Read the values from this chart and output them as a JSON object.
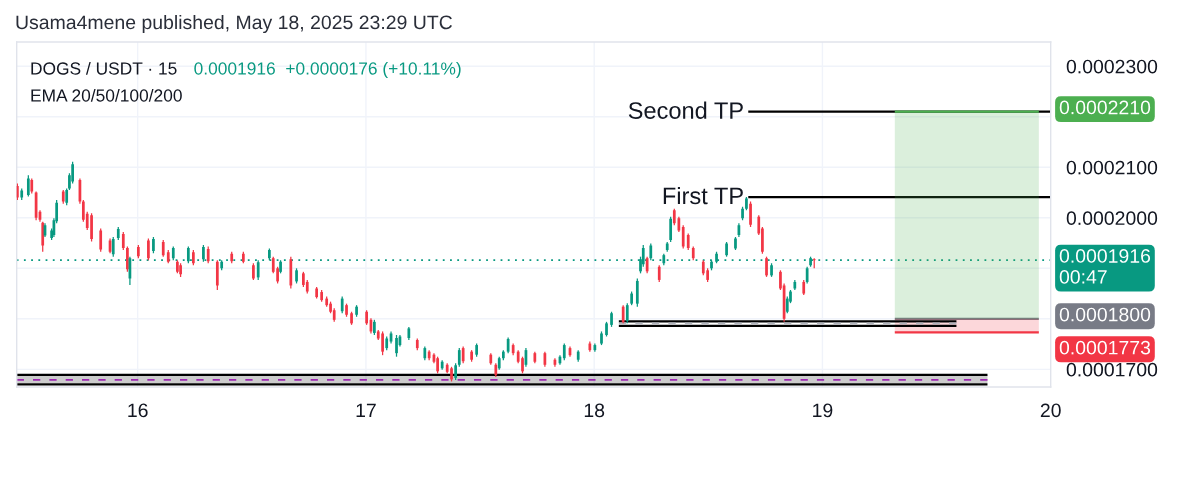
{
  "chart_data": {
    "type": "candlestick",
    "title": "Usama4mene published, May 18, 2025 23:29 UTC",
    "subtitle": "DOGS / USDT · 15",
    "annotations": [
      "0.0001916  +0.0000176 (+10.11%)",
      "EMA 20/50/100/200"
    ],
    "x": [
      15.473,
      15.492,
      15.521,
      15.536,
      15.555,
      15.572,
      15.584,
      15.594,
      15.623,
      15.633,
      15.645,
      15.674,
      15.689,
      15.701,
      15.715,
      15.747,
      15.762,
      15.779,
      15.798,
      15.838,
      15.879,
      15.893,
      15.915,
      15.937,
      15.955,
      15.966,
      16.003,
      16.047,
      16.069,
      16.112,
      16.134,
      16.156,
      16.174,
      16.188,
      16.222,
      16.244,
      16.288,
      16.309,
      16.349,
      16.368,
      16.412,
      16.463,
      16.507,
      16.528,
      16.577,
      16.594,
      16.613,
      16.626,
      16.671,
      16.696,
      16.726,
      16.743,
      16.784,
      16.806,
      16.828,
      16.845,
      16.861,
      16.896,
      16.915,
      16.937,
      16.959,
      17.003,
      17.022,
      17.037,
      17.054,
      17.073,
      17.091,
      17.11,
      17.134,
      17.149,
      17.188,
      17.225,
      17.258,
      17.277,
      17.298,
      17.314,
      17.334,
      17.356,
      17.375,
      17.393,
      17.409,
      17.426,
      17.463,
      17.485,
      17.547,
      17.569,
      17.584,
      17.602,
      17.623,
      17.645,
      17.667,
      17.686,
      17.701,
      17.74,
      17.784,
      17.828,
      17.85,
      17.869,
      17.894,
      17.93,
      17.981,
      18.003,
      18.032,
      18.054,
      18.076,
      18.127,
      18.145,
      18.164,
      18.189,
      18.203,
      18.215,
      18.232,
      18.248,
      18.285,
      18.305,
      18.32,
      18.335,
      18.351,
      18.371,
      18.39,
      18.412,
      18.434,
      18.478,
      18.497,
      18.514,
      18.536,
      18.58,
      18.619,
      18.634,
      18.65,
      18.667,
      18.685,
      18.721,
      18.737,
      18.755,
      18.777,
      18.816,
      18.832,
      18.846,
      18.86,
      18.879,
      18.918,
      18.933,
      18.948,
      18.964
    ],
    "ohlc": [
      [
        0.0002063,
        0.0002068,
        0.0002035,
        0.000204
      ],
      [
        0.000204,
        0.0002058,
        0.0002035,
        0.0002054
      ],
      [
        0.0002045,
        0.0002084,
        0.0002042,
        0.0002078
      ],
      [
        0.0002075,
        0.0002078,
        0.0002048,
        0.0002052
      ],
      [
        0.000205,
        0.0002052,
        0.0001995,
        0.0002
      ],
      [
        0.0002012,
        0.0002015,
        0.0001992,
        0.0001996
      ],
      [
        0.000199,
        0.0001992,
        0.0001933,
        0.0001945
      ],
      [
        0.0001965,
        0.0001989,
        0.0001962,
        0.0001985
      ],
      [
        0.000196,
        0.0001979,
        0.0001956,
        0.0001975
      ],
      [
        0.0001966,
        0.0001999,
        0.0001962,
        0.0001995
      ],
      [
        0.0001993,
        0.0002035,
        0.0001989,
        0.000203
      ],
      [
        0.0002052,
        0.0002055,
        0.0002028,
        0.0002032
      ],
      [
        0.000203,
        0.0002058,
        0.0002025,
        0.0002055
      ],
      [
        0.0002058,
        0.0002088,
        0.0002055,
        0.0002084
      ],
      [
        0.0002072,
        0.0002111,
        0.0002068,
        0.0002106
      ],
      [
        0.0002075,
        0.0002078,
        0.0002028,
        0.0002032
      ],
      [
        0.0002032,
        0.0002035,
        0.0001992,
        0.0001996
      ],
      [
        0.0002008,
        0.0002012,
        0.0001976,
        0.000198
      ],
      [
        0.0002005,
        0.0002009,
        0.0001953,
        0.0001958
      ],
      [
        0.0001975,
        0.0001979,
        0.0001933,
        0.0001937
      ],
      [
        0.0001955,
        0.0001959,
        0.000193,
        0.0001933
      ],
      [
        0.0001928,
        0.0001962,
        0.0001923,
        0.0001958
      ],
      [
        0.000196,
        0.0001982,
        0.0001956,
        0.0001978
      ],
      [
        0.0001968,
        0.0001972,
        0.0001936,
        0.000194
      ],
      [
        0.000194,
        0.0001943,
        0.0001893,
        0.0001898
      ],
      [
        0.000188,
        0.0001923,
        0.0001867,
        0.000192
      ],
      [
        0.0001942,
        0.0001946,
        0.000192,
        0.0001924
      ],
      [
        0.0001955,
        0.0001959,
        0.0001916,
        0.000192
      ],
      [
        0.0001934,
        0.0001962,
        0.000193,
        0.0001958
      ],
      [
        0.0001952,
        0.0001956,
        0.0001923,
        0.0001926
      ],
      [
        0.0001932,
        0.0001936,
        0.000191,
        0.0001913
      ],
      [
        0.000192,
        0.0001943,
        0.0001916,
        0.000194
      ],
      [
        0.0001913,
        0.0001916,
        0.000189,
        0.0001893
      ],
      [
        0.0001906,
        0.000191,
        0.0001883,
        0.0001888
      ],
      [
        0.0001914,
        0.0001943,
        0.000191,
        0.000194
      ],
      [
        0.0001932,
        0.0001936,
        0.0001906,
        0.000191
      ],
      [
        0.0001918,
        0.0001946,
        0.0001913,
        0.0001942
      ],
      [
        0.0001938,
        0.0001943,
        0.000191,
        0.0001914
      ],
      [
        0.0001913,
        0.0001916,
        0.0001857,
        0.0001866
      ],
      [
        0.00019,
        0.0001916,
        0.0001896,
        0.0001913
      ],
      [
        0.0001929,
        0.0001933,
        0.000191,
        0.0001914
      ],
      [
        0.0001929,
        0.0001933,
        0.000191,
        0.0001913
      ],
      [
        0.0001906,
        0.000191,
        0.0001877,
        0.000188
      ],
      [
        0.0001882,
        0.0001916,
        0.0001877,
        0.0001912
      ],
      [
        0.000192,
        0.0001939,
        0.0001916,
        0.0001936
      ],
      [
        0.000192,
        0.0001923,
        0.000189,
        0.0001893
      ],
      [
        0.00019,
        0.0001903,
        0.000187,
        0.0001874
      ],
      [
        0.0001893,
        0.0001916,
        0.000189,
        0.0001913
      ],
      [
        0.0001918,
        0.0001923,
        0.000186,
        0.0001866
      ],
      [
        0.0001874,
        0.00019,
        0.000187,
        0.0001896
      ],
      [
        0.000189,
        0.0001893,
        0.0001863,
        0.0001867
      ],
      [
        0.0001873,
        0.0001877,
        0.000185,
        0.0001854
      ],
      [
        0.000186,
        0.0001863,
        0.000184,
        0.0001843
      ],
      [
        0.0001853,
        0.0001857,
        0.0001834,
        0.0001837
      ],
      [
        0.000184,
        0.0001844,
        0.0001824,
        0.0001827
      ],
      [
        0.000183,
        0.0001834,
        0.0001811,
        0.0001814
      ],
      [
        0.0001817,
        0.0001821,
        0.0001794,
        0.0001798
      ],
      [
        0.0001815,
        0.0001844,
        0.0001811,
        0.000184
      ],
      [
        0.0001827,
        0.000183,
        0.0001804,
        0.0001808
      ],
      [
        0.0001811,
        0.0001814,
        0.0001788,
        0.0001791
      ],
      [
        0.0001808,
        0.0001827,
        0.0001804,
        0.0001824
      ],
      [
        0.0001814,
        0.0001817,
        0.0001788,
        0.0001791
      ],
      [
        0.0001798,
        0.0001801,
        0.0001771,
        0.0001775
      ],
      [
        0.0001772,
        0.0001798,
        0.0001768,
        0.0001794
      ],
      [
        0.0001775,
        0.0001778,
        0.0001758,
        0.0001761
      ],
      [
        0.0001771,
        0.0001775,
        0.0001728,
        0.0001735
      ],
      [
        0.0001742,
        0.0001765,
        0.0001738,
        0.0001761
      ],
      [
        0.0001755,
        0.0001775,
        0.0001751,
        0.0001771
      ],
      [
        0.0001732,
        0.0001768,
        0.0001725,
        0.0001762
      ],
      [
        0.0001748,
        0.0001768,
        0.0001745,
        0.0001765
      ],
      [
        0.0001762,
        0.0001784,
        0.0001758,
        0.0001781
      ],
      [
        0.0001758,
        0.0001761,
        0.0001738,
        0.0001742
      ],
      [
        0.0001722,
        0.0001745,
        0.0001718,
        0.0001742
      ],
      [
        0.0001735,
        0.0001738,
        0.0001718,
        0.0001722
      ],
      [
        0.0001729,
        0.0001732,
        0.0001712,
        0.0001715
      ],
      [
        0.0001722,
        0.0001725,
        0.0001692,
        0.0001696
      ],
      [
        0.0001702,
        0.0001718,
        0.0001699,
        0.0001715
      ],
      [
        0.0001709,
        0.0001712,
        0.0001692,
        0.0001695
      ],
      [
        0.0001702,
        0.0001705,
        0.0001676,
        0.000168
      ],
      [
        0.0001683,
        0.0001712,
        0.0001679,
        0.0001708
      ],
      [
        0.0001709,
        0.0001742,
        0.0001705,
        0.0001738
      ],
      [
        0.0001742,
        0.0001745,
        0.0001712,
        0.0001716
      ],
      [
        0.0001735,
        0.0001738,
        0.0001715,
        0.0001719
      ],
      [
        0.0001729,
        0.0001751,
        0.0001725,
        0.0001748
      ],
      [
        0.0001729,
        0.0001732,
        0.0001709,
        0.0001712
      ],
      [
        0.0001709,
        0.0001712,
        0.0001685,
        0.0001689
      ],
      [
        0.0001702,
        0.0001725,
        0.0001699,
        0.0001722
      ],
      [
        0.0001722,
        0.0001738,
        0.0001718,
        0.0001735
      ],
      [
        0.0001735,
        0.0001763,
        0.0001732,
        0.000176
      ],
      [
        0.0001748,
        0.0001751,
        0.0001728,
        0.0001732
      ],
      [
        0.0001735,
        0.0001738,
        0.0001712,
        0.0001715
      ],
      [
        0.0001722,
        0.0001725,
        0.0001692,
        0.0001696
      ],
      [
        0.0001709,
        0.0001742,
        0.0001705,
        0.0001738
      ],
      [
        0.0001732,
        0.0001735,
        0.0001712,
        0.0001715
      ],
      [
        0.0001732,
        0.0001735,
        0.0001705,
        0.0001709
      ],
      [
        0.0001719,
        0.0001722,
        0.0001705,
        0.0001709
      ],
      [
        0.0001712,
        0.0001728,
        0.0001709,
        0.0001725
      ],
      [
        0.0001722,
        0.0001751,
        0.0001718,
        0.0001748
      ],
      [
        0.0001742,
        0.0001745,
        0.0001725,
        0.0001728
      ],
      [
        0.0001719,
        0.0001738,
        0.0001715,
        0.0001735
      ],
      [
        0.0001751,
        0.0001755,
        0.0001735,
        0.0001738
      ],
      [
        0.0001738,
        0.0001751,
        0.0001735,
        0.0001748
      ],
      [
        0.0001751,
        0.0001775,
        0.0001748,
        0.0001771
      ],
      [
        0.0001768,
        0.0001794,
        0.0001765,
        0.0001791
      ],
      [
        0.0001788,
        0.0001814,
        0.0001784,
        0.0001811
      ],
      [
        0.0001824,
        0.0001827,
        0.0001791,
        0.0001794
      ],
      [
        0.0001796,
        0.0001831,
        0.0001791,
        0.0001827
      ],
      [
        0.000183,
        0.0001854,
        0.0001827,
        0.000185
      ],
      [
        0.000183,
        0.000188,
        0.0001824,
        0.0001875
      ],
      [
        0.0001894,
        0.0001923,
        0.000189,
        0.0001918
      ],
      [
        0.0001908,
        0.0001946,
        0.0001903,
        0.000194
      ],
      [
        0.000192,
        0.0001923,
        0.000189,
        0.0001894
      ],
      [
        0.000192,
        0.0001949,
        0.0001916,
        0.0001945
      ],
      [
        0.0001903,
        0.0001906,
        0.0001873,
        0.0001877
      ],
      [
        0.000191,
        0.0001929,
        0.0001906,
        0.0001926
      ],
      [
        0.0001936,
        0.0001952,
        0.0001933,
        0.0001949
      ],
      [
        0.0001956,
        0.0002002,
        0.0001952,
        0.0001998
      ],
      [
        0.0002015,
        0.0002018,
        0.0001985,
        0.0001989
      ],
      [
        0.0001999,
        0.0002002,
        0.0001972,
        0.0001975
      ],
      [
        0.0001982,
        0.0001985,
        0.0001939,
        0.0001943
      ],
      [
        0.0001966,
        0.0001969,
        0.0001936,
        0.000194
      ],
      [
        0.000194,
        0.0001943,
        0.0001916,
        0.000192
      ],
      [
        0.0001913,
        0.0001916,
        0.0001886,
        0.000189
      ],
      [
        0.0001896,
        0.00019,
        0.0001873,
        0.0001877
      ],
      [
        0.00019,
        0.0001916,
        0.0001896,
        0.0001913
      ],
      [
        0.0001913,
        0.0001933,
        0.000191,
        0.0001929
      ],
      [
        0.0001926,
        0.0001952,
        0.0001923,
        0.0001949
      ],
      [
        0.0001939,
        0.0001962,
        0.0001936,
        0.0001959
      ],
      [
        0.0001966,
        0.0001989,
        0.0001962,
        0.0001985
      ],
      [
        0.0001999,
        0.0002022,
        0.0001995,
        0.0002018
      ],
      [
        0.0002018,
        0.0002041,
        0.0002015,
        0.0002038
      ],
      [
        0.0002028,
        0.0002032,
        0.0001982,
        0.0001986
      ],
      [
        0.0002002,
        0.0002005,
        0.0001966,
        0.0001969
      ],
      [
        0.0001979,
        0.0001982,
        0.0001929,
        0.0001933
      ],
      [
        0.000192,
        0.0001923,
        0.0001883,
        0.0001886
      ],
      [
        0.0001886,
        0.000191,
        0.0001883,
        0.0001906
      ],
      [
        0.0001893,
        0.0001896,
        0.0001857,
        0.000186
      ],
      [
        0.0001866,
        0.000187,
        0.0001794,
        0.00018
      ],
      [
        0.0001814,
        0.0001844,
        0.0001811,
        0.000184
      ],
      [
        0.0001834,
        0.0001857,
        0.0001831,
        0.0001854
      ],
      [
        0.000186,
        0.0001877,
        0.0001857,
        0.0001873
      ],
      [
        0.0001873,
        0.0001877,
        0.0001847,
        0.000185
      ],
      [
        0.0001873,
        0.0001903,
        0.000187,
        0.00019
      ],
      [
        0.0001906,
        0.0001923,
        0.0001903,
        0.000192
      ],
      [
        0.0001918,
        0.000192,
        0.00019,
        0.0001916
      ]
    ],
    "series": [
      {
        "type": "line",
        "x": [
          19.317,
          19.948
        ],
        "values": [
          0.00018,
          0.00018
        ],
        "color": "#787b86",
        "value_labels": [
          null,
          "0.0001800"
        ]
      },
      {
        "type": "line",
        "name": "Second TP",
        "x": [
          18.675,
          20.0
        ],
        "values": [
          0.000221,
          0.000221
        ],
        "color": "#000000"
      },
      {
        "type": "line",
        "name": "First TP",
        "x": [
          18.675,
          20.0
        ],
        "values": [
          0.0002041,
          0.0002041
        ],
        "color": "#000000"
      },
      {
        "type": "line",
        "x": [
          19.317,
          19.948
        ],
        "values": [
          0.000221,
          0.000221
        ],
        "lower": [
          0.00018,
          0.00018
        ],
        "upper": [
          0.000221,
          0.000221
        ],
        "color": "#4caf50",
        "value_labels": [
          null,
          "0.0002210"
        ]
      },
      {
        "type": "line",
        "x": [
          19.317,
          19.948
        ],
        "values": [
          0.0001773,
          0.0001773
        ],
        "lower": [
          0.0001773,
          0.0001773
        ],
        "upper": [
          0.00018,
          0.00018
        ],
        "color": "#f23645",
        "value_labels": [
          null,
          "0.0001773"
        ]
      },
      {
        "type": "line",
        "x": [
          15.47,
          19.723
        ],
        "values": [
          0.0001689,
          0.0001689
        ],
        "lower": [
          0.0001673,
          0.0001673
        ],
        "upper": [
          0.0001689,
          0.0001689
        ],
        "color": "#000000"
      },
      {
        "type": "line",
        "x": [
          15.47,
          19.723
        ],
        "values": [
          0.000167,
          0.000167
        ],
        "color": "#000000"
      },
      {
        "type": "line",
        "x": [
          15.47,
          19.723
        ],
        "values": [
          0.0001679,
          0.0001679
        ],
        "color": "#9c27b0",
        "line_style": "dashed"
      },
      {
        "type": "line",
        "x": [
          18.108,
          19.587
        ],
        "values": [
          0.0001795,
          0.0001795
        ],
        "color": "#000000"
      },
      {
        "type": "line",
        "x": [
          18.108,
          19.587
        ],
        "values": [
          0.0001786,
          0.0001786
        ],
        "color": "#000000"
      },
      {
        "type": "line",
        "x": [
          18.108,
          19.587
        ],
        "values": [
          0.0001791,
          0.0001791
        ],
        "color": "#b2b5be",
        "line_style": "dashed"
      }
    ],
    "ref_lines": [
      {
        "axis": "y",
        "value": 0.0001916,
        "label": "0.0001916\n00:47",
        "color": "#089981",
        "line_style": "dotted"
      }
    ],
    "xlim": [
      15.47,
      20.0
    ],
    "xticks": [
      16,
      17,
      18,
      19,
      20
    ],
    "ylim": [
      0.0001665,
      0.0002348
    ],
    "yticks": [
      {
        "value": 0.00017,
        "label": "0.0001700"
      },
      {
        "value": 0.00018,
        "label": null
      },
      {
        "value": 0.00019,
        "label": null
      },
      {
        "value": 0.0002,
        "label": "0.0002000"
      },
      {
        "value": 0.00021,
        "label": "0.0002100"
      },
      {
        "value": 0.00022,
        "label": null
      },
      {
        "value": 0.00023,
        "label": "0.0002300"
      }
    ],
    "grid": true
  }
}
